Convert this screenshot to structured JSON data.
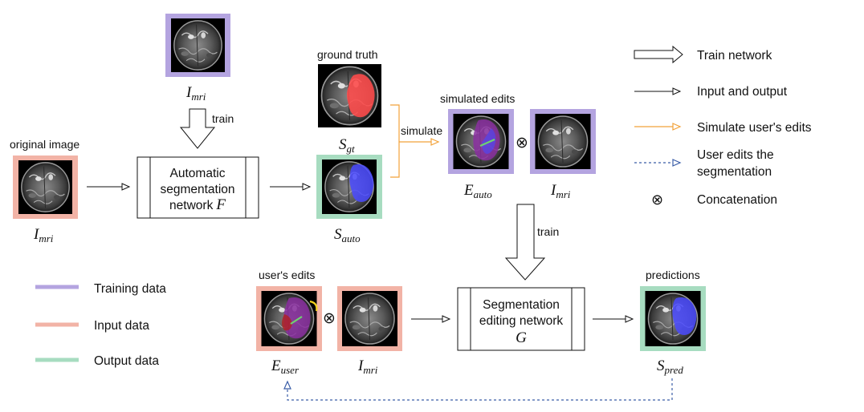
{
  "colors": {
    "training": "#b4a4e0",
    "input": "#f2b3a6",
    "output": "#a7dcc0",
    "orange": "#f2a23a",
    "blue_dash": "#3b5ea8",
    "tumor_red": "#ff4a4a",
    "tumor_blue": "#4a4aff",
    "tumor_purple": "#8a2ea0",
    "edit_green": "#6fd26f",
    "edit_yellow": "#f0d020"
  },
  "images": {
    "mri_top": {
      "label_main": "I",
      "label_sub": "mri"
    },
    "original": {
      "caption": "original image",
      "label_main": "I",
      "label_sub": "mri"
    },
    "ground_truth": {
      "caption": "ground truth",
      "label_main": "S",
      "label_sub": "gt"
    },
    "s_auto": {
      "label_main": "S",
      "label_sub": "auto"
    },
    "e_auto": {
      "caption": "simulated edits",
      "label_main": "E",
      "label_sub": "auto"
    },
    "mri_mid": {
      "label_main": "I",
      "label_sub": "mri"
    },
    "e_user": {
      "caption": "user's edits",
      "label_main": "E",
      "label_sub": "user"
    },
    "mri_bottom": {
      "label_main": "I",
      "label_sub": "mri"
    },
    "s_pred": {
      "caption": "predictions",
      "label_main": "S",
      "label_sub": "pred"
    }
  },
  "blocks": {
    "auto_net": {
      "line1": "Automatic",
      "line2": "segmentation",
      "line3": "network",
      "symbol": "F"
    },
    "edit_net": {
      "line1": "Segmentation",
      "line2": "editing network",
      "symbol": "G"
    }
  },
  "annotations": {
    "train_top": "train",
    "train_mid": "train",
    "simulate": "simulate",
    "concat_symbol": "⊗"
  },
  "legend_right": [
    {
      "icon": "hollow-arrow-icon",
      "label": "Train network"
    },
    {
      "icon": "thin-arrow-icon",
      "label": "Input and output"
    },
    {
      "icon": "orange-arrow-icon",
      "label": "Simulate user's edits"
    },
    {
      "icon": "dashed-arrow-icon",
      "label": "User edits the",
      "label2": "segmentation"
    },
    {
      "icon": "concat-icon",
      "symbol": "⊗",
      "label": "Concatenation"
    }
  ],
  "legend_left": [
    {
      "color_key": "training",
      "label": "Training data"
    },
    {
      "color_key": "input",
      "label": "Input data"
    },
    {
      "color_key": "output",
      "label": "Output data"
    }
  ]
}
